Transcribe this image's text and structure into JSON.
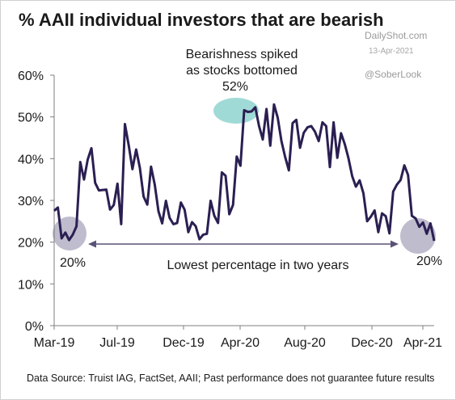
{
  "title": "% AAII individual investors that are bearish",
  "watermark": {
    "brand": "DailyShot.com",
    "date": "13-Apr-2021",
    "handle": "@SoberLook"
  },
  "source": "Data Source: Truist IAG, FactSet, AAII; Past performance does not guarantee future results",
  "colors": {
    "line": "#2b1f52",
    "highlight_circle": "#a9a5bd",
    "peak_ellipse": "#8fd3d0",
    "axis": "#7f7f7f"
  },
  "annotations": {
    "peak_line1": "Bearishness spiked",
    "peak_line2": "as stocks bottomed",
    "peak_value": "52%",
    "left_value": "20%",
    "right_value": "20%",
    "span_label": "Lowest percentage in two years"
  },
  "chart_data": {
    "type": "line",
    "title": "% AAII individual investors that are bearish",
    "xlabel": "",
    "ylabel": "",
    "ylim": [
      0,
      60
    ],
    "yticks": [
      "0%",
      "10%",
      "20%",
      "30%",
      "40%",
      "50%",
      "60%"
    ],
    "xticks": [
      "Mar-19",
      "Jul-19",
      "Dec-19",
      "Apr-20",
      "Aug-20",
      "Dec-20",
      "Apr-21"
    ],
    "grid": false,
    "legend": "none",
    "series": [
      {
        "values": [
          27.5,
          28.3,
          20.9,
          22.3,
          20.5,
          21.8,
          23.8,
          39.2,
          35.0,
          39.8,
          42.5,
          34.2,
          32.4,
          32.5,
          32.6,
          27.8,
          28.9,
          34.0,
          24.3,
          48.3,
          43.2,
          37.5,
          42.2,
          37.8,
          30.9,
          29.0,
          38.1,
          33.8,
          27.4,
          24.5,
          29.9,
          25.8,
          24.3,
          24.6,
          29.5,
          27.8,
          22.4,
          24.8,
          23.8,
          20.7,
          21.8,
          22.0,
          29.9,
          26.3,
          24.6,
          36.7,
          35.9,
          26.7,
          28.9,
          40.5,
          38.3,
          51.6,
          51.2,
          51.3,
          52.3,
          47.8,
          44.6,
          51.9,
          43.1,
          53.0,
          49.8,
          44.2,
          40.4,
          37.2,
          48.5,
          49.3,
          42.6,
          46.2,
          47.5,
          47.8,
          46.5,
          44.2,
          48.7,
          47.8,
          38.0,
          48.7,
          40.2,
          46.1,
          43.5,
          40.1,
          35.8,
          33.3,
          34.8,
          31.7,
          25.0,
          26.1,
          27.6,
          22.4,
          26.9,
          26.2,
          22.1,
          32.1,
          33.8,
          34.9,
          38.4,
          36.1,
          26.3,
          25.7,
          23.7,
          24.7,
          22.0,
          24.5,
          20.3
        ]
      }
    ]
  }
}
